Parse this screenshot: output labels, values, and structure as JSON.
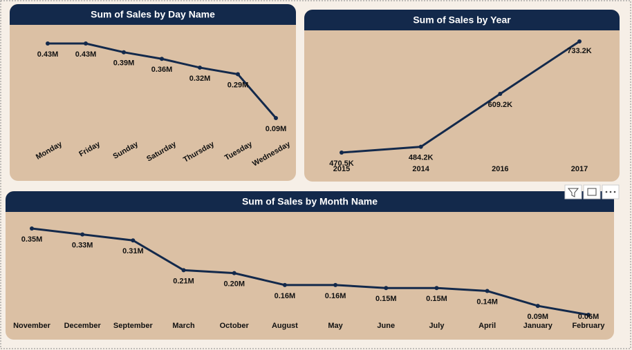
{
  "chart_data": [
    {
      "type": "line",
      "title": "Sum of Sales by Day Name",
      "color": "#13294b",
      "categories": [
        "Monday",
        "Friday",
        "Sunday",
        "Saturday",
        "Thursday",
        "Tuesday",
        "Wednesday"
      ],
      "values": [
        0.43,
        0.43,
        0.39,
        0.36,
        0.32,
        0.29,
        0.09
      ],
      "value_labels": [
        "0.43M",
        "0.43M",
        "0.39M",
        "0.36M",
        "0.32M",
        "0.29M",
        "0.09M"
      ]
    },
    {
      "type": "line",
      "title": "Sum of Sales by Year",
      "color": "#13294b",
      "categories": [
        "2015",
        "2014",
        "2016",
        "2017"
      ],
      "values": [
        470.5,
        484.2,
        609.2,
        733.2
      ],
      "value_labels": [
        "470.5K",
        "484.2K",
        "609.2K",
        "733.2K"
      ]
    },
    {
      "type": "line",
      "title": "Sum of Sales by Month Name",
      "color": "#13294b",
      "categories": [
        "November",
        "December",
        "September",
        "March",
        "October",
        "August",
        "May",
        "June",
        "July",
        "April",
        "January",
        "February"
      ],
      "values": [
        0.35,
        0.33,
        0.31,
        0.21,
        0.2,
        0.16,
        0.16,
        0.15,
        0.15,
        0.14,
        0.09,
        0.06
      ],
      "value_labels": [
        "0.35M",
        "0.33M",
        "0.31M",
        "0.21M",
        "0.20M",
        "0.16M",
        "0.16M",
        "0.15M",
        "0.15M",
        "0.14M",
        "0.09M",
        "0.06M"
      ]
    }
  ]
}
